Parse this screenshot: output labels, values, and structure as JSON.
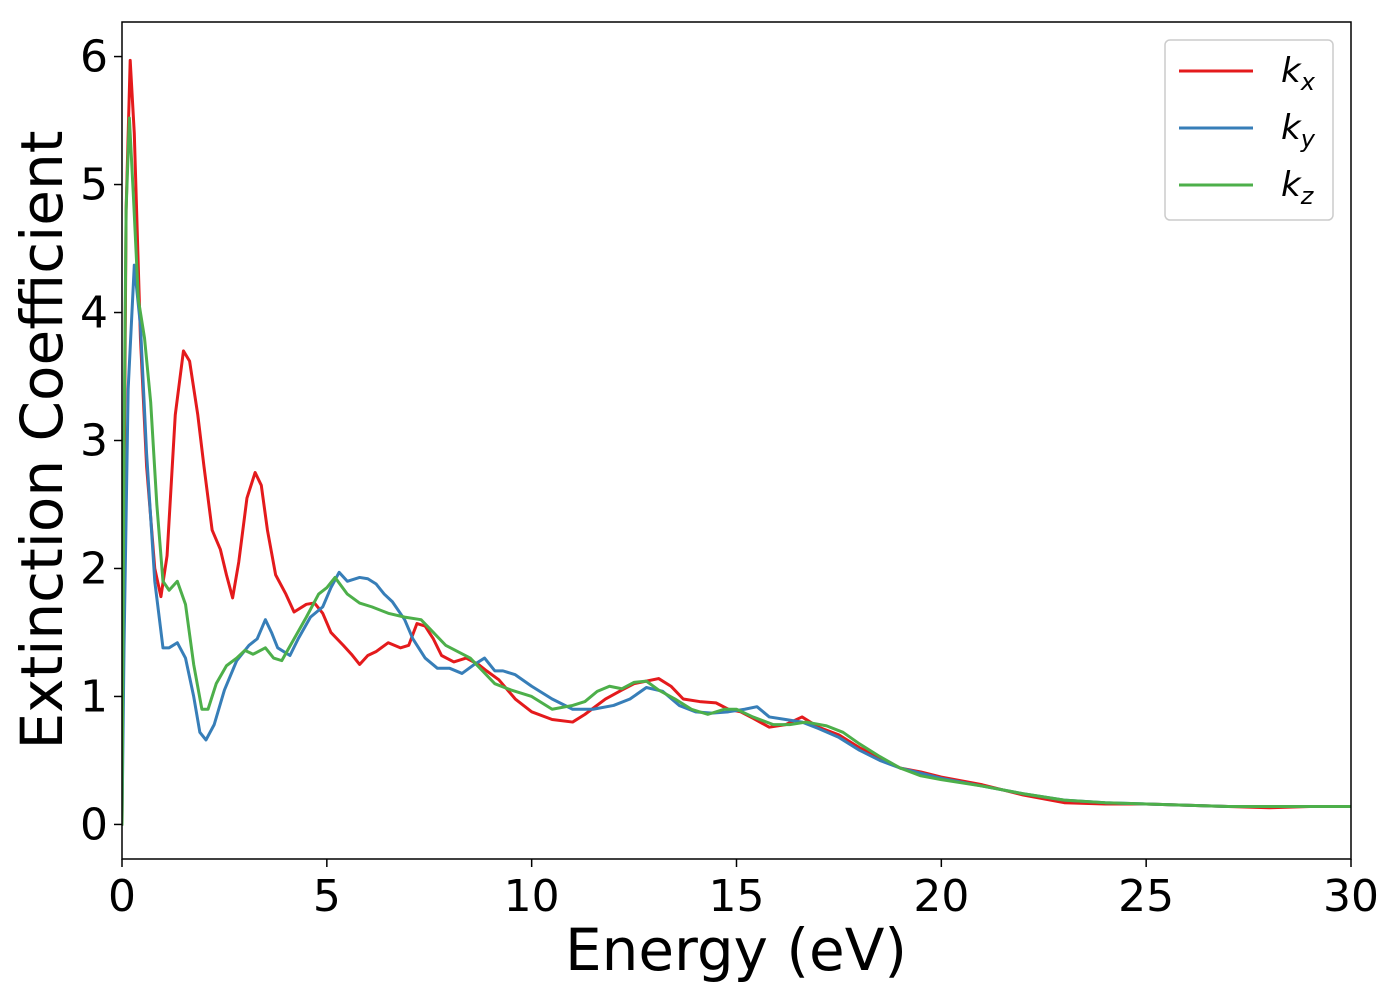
{
  "chart_data": {
    "type": "line",
    "xlabel": "Energy (eV)",
    "ylabel": "Extinction Coefficient",
    "xlim": [
      0,
      30
    ],
    "ylim": [
      -0.27,
      6.27
    ],
    "xticks": [
      0,
      5,
      10,
      15,
      20,
      25,
      30
    ],
    "yticks": [
      0,
      1,
      2,
      3,
      4,
      5,
      6
    ],
    "grid": false,
    "legend_position": "top-right",
    "series": [
      {
        "name": "k_x",
        "label_base": "k",
        "label_sub": "x",
        "color": "#e41a1c",
        "points": [
          [
            0,
            0
          ],
          [
            0.05,
            2.5
          ],
          [
            0.1,
            4.8
          ],
          [
            0.2,
            5.97
          ],
          [
            0.3,
            5.4
          ],
          [
            0.45,
            3.8
          ],
          [
            0.6,
            2.8
          ],
          [
            0.8,
            2.0
          ],
          [
            0.95,
            1.78
          ],
          [
            1.1,
            2.1
          ],
          [
            1.3,
            3.2
          ],
          [
            1.5,
            3.7
          ],
          [
            1.65,
            3.62
          ],
          [
            1.85,
            3.2
          ],
          [
            2.0,
            2.8
          ],
          [
            2.2,
            2.3
          ],
          [
            2.4,
            2.15
          ],
          [
            2.55,
            1.95
          ],
          [
            2.7,
            1.77
          ],
          [
            2.85,
            2.05
          ],
          [
            3.05,
            2.55
          ],
          [
            3.25,
            2.75
          ],
          [
            3.4,
            2.65
          ],
          [
            3.55,
            2.3
          ],
          [
            3.75,
            1.95
          ],
          [
            4.0,
            1.8
          ],
          [
            4.2,
            1.66
          ],
          [
            4.5,
            1.72
          ],
          [
            4.7,
            1.73
          ],
          [
            4.9,
            1.65
          ],
          [
            5.1,
            1.5
          ],
          [
            5.4,
            1.4
          ],
          [
            5.6,
            1.33
          ],
          [
            5.8,
            1.25
          ],
          [
            6.0,
            1.32
          ],
          [
            6.2,
            1.35
          ],
          [
            6.5,
            1.42
          ],
          [
            6.8,
            1.38
          ],
          [
            7.0,
            1.4
          ],
          [
            7.2,
            1.57
          ],
          [
            7.4,
            1.55
          ],
          [
            7.6,
            1.45
          ],
          [
            7.8,
            1.32
          ],
          [
            8.1,
            1.27
          ],
          [
            8.4,
            1.3
          ],
          [
            8.7,
            1.25
          ],
          [
            8.9,
            1.2
          ],
          [
            9.2,
            1.13
          ],
          [
            9.6,
            0.98
          ],
          [
            10.0,
            0.88
          ],
          [
            10.5,
            0.82
          ],
          [
            11.0,
            0.8
          ],
          [
            11.3,
            0.86
          ],
          [
            11.8,
            0.98
          ],
          [
            12.2,
            1.05
          ],
          [
            12.5,
            1.1
          ],
          [
            12.8,
            1.12
          ],
          [
            13.1,
            1.14
          ],
          [
            13.4,
            1.08
          ],
          [
            13.7,
            0.98
          ],
          [
            14.1,
            0.96
          ],
          [
            14.5,
            0.95
          ],
          [
            14.8,
            0.9
          ],
          [
            15.1,
            0.88
          ],
          [
            15.4,
            0.83
          ],
          [
            15.8,
            0.76
          ],
          [
            16.2,
            0.78
          ],
          [
            16.6,
            0.84
          ],
          [
            17.0,
            0.76
          ],
          [
            17.5,
            0.7
          ],
          [
            18.0,
            0.6
          ],
          [
            18.5,
            0.52
          ],
          [
            19.0,
            0.44
          ],
          [
            19.5,
            0.41
          ],
          [
            20.0,
            0.37
          ],
          [
            21.0,
            0.31
          ],
          [
            22.0,
            0.23
          ],
          [
            23.0,
            0.17
          ],
          [
            24.0,
            0.16
          ],
          [
            25.0,
            0.16
          ],
          [
            26.0,
            0.15
          ],
          [
            27.0,
            0.14
          ],
          [
            28.0,
            0.13
          ],
          [
            29.0,
            0.14
          ],
          [
            30.0,
            0.14
          ]
        ]
      },
      {
        "name": "k_y",
        "label_base": "k",
        "label_sub": "y",
        "color": "#377eb8",
        "points": [
          [
            0,
            0
          ],
          [
            0.05,
            1.4
          ],
          [
            0.15,
            3.4
          ],
          [
            0.3,
            4.37
          ],
          [
            0.45,
            3.9
          ],
          [
            0.6,
            2.9
          ],
          [
            0.8,
            1.9
          ],
          [
            1.0,
            1.38
          ],
          [
            1.15,
            1.38
          ],
          [
            1.35,
            1.42
          ],
          [
            1.55,
            1.3
          ],
          [
            1.75,
            1.0
          ],
          [
            1.9,
            0.72
          ],
          [
            2.05,
            0.66
          ],
          [
            2.25,
            0.78
          ],
          [
            2.5,
            1.05
          ],
          [
            2.8,
            1.28
          ],
          [
            3.1,
            1.4
          ],
          [
            3.3,
            1.45
          ],
          [
            3.5,
            1.6
          ],
          [
            3.65,
            1.5
          ],
          [
            3.8,
            1.38
          ],
          [
            4.1,
            1.32
          ],
          [
            4.3,
            1.45
          ],
          [
            4.6,
            1.62
          ],
          [
            4.9,
            1.7
          ],
          [
            5.1,
            1.85
          ],
          [
            5.3,
            1.97
          ],
          [
            5.5,
            1.9
          ],
          [
            5.8,
            1.93
          ],
          [
            6.0,
            1.92
          ],
          [
            6.2,
            1.88
          ],
          [
            6.4,
            1.8
          ],
          [
            6.6,
            1.74
          ],
          [
            6.9,
            1.6
          ],
          [
            7.1,
            1.45
          ],
          [
            7.4,
            1.3
          ],
          [
            7.7,
            1.22
          ],
          [
            8.0,
            1.22
          ],
          [
            8.3,
            1.18
          ],
          [
            8.6,
            1.25
          ],
          [
            8.85,
            1.3
          ],
          [
            9.1,
            1.2
          ],
          [
            9.3,
            1.2
          ],
          [
            9.6,
            1.17
          ],
          [
            10.0,
            1.08
          ],
          [
            10.5,
            0.98
          ],
          [
            11.0,
            0.9
          ],
          [
            11.5,
            0.9
          ],
          [
            12.0,
            0.93
          ],
          [
            12.4,
            0.98
          ],
          [
            12.8,
            1.07
          ],
          [
            13.2,
            1.04
          ],
          [
            13.6,
            0.93
          ],
          [
            14.0,
            0.88
          ],
          [
            14.4,
            0.87
          ],
          [
            14.8,
            0.88
          ],
          [
            15.2,
            0.9
          ],
          [
            15.5,
            0.92
          ],
          [
            15.8,
            0.84
          ],
          [
            16.2,
            0.82
          ],
          [
            16.6,
            0.8
          ],
          [
            17.0,
            0.75
          ],
          [
            17.5,
            0.68
          ],
          [
            18.0,
            0.58
          ],
          [
            18.5,
            0.5
          ],
          [
            19.0,
            0.44
          ],
          [
            20.0,
            0.36
          ],
          [
            21.0,
            0.3
          ],
          [
            22.0,
            0.24
          ],
          [
            23.0,
            0.19
          ],
          [
            24.0,
            0.17
          ],
          [
            25.0,
            0.16
          ],
          [
            26.0,
            0.15
          ],
          [
            27.0,
            0.14
          ],
          [
            28.0,
            0.14
          ],
          [
            29.0,
            0.14
          ],
          [
            30.0,
            0.14
          ]
        ]
      },
      {
        "name": "k_z",
        "label_base": "k",
        "label_sub": "z",
        "color": "#4daf4a",
        "points": [
          [
            0,
            0
          ],
          [
            0.05,
            3.0
          ],
          [
            0.1,
            4.8
          ],
          [
            0.18,
            5.52
          ],
          [
            0.28,
            4.9
          ],
          [
            0.4,
            4.1
          ],
          [
            0.55,
            3.8
          ],
          [
            0.7,
            3.3
          ],
          [
            0.85,
            2.5
          ],
          [
            1.0,
            1.9
          ],
          [
            1.15,
            1.83
          ],
          [
            1.35,
            1.9
          ],
          [
            1.55,
            1.72
          ],
          [
            1.75,
            1.25
          ],
          [
            1.95,
            0.9
          ],
          [
            2.1,
            0.9
          ],
          [
            2.3,
            1.1
          ],
          [
            2.55,
            1.24
          ],
          [
            2.8,
            1.3
          ],
          [
            3.0,
            1.36
          ],
          [
            3.2,
            1.33
          ],
          [
            3.5,
            1.38
          ],
          [
            3.7,
            1.3
          ],
          [
            3.9,
            1.28
          ],
          [
            4.2,
            1.45
          ],
          [
            4.5,
            1.62
          ],
          [
            4.8,
            1.8
          ],
          [
            5.0,
            1.85
          ],
          [
            5.2,
            1.93
          ],
          [
            5.5,
            1.8
          ],
          [
            5.8,
            1.73
          ],
          [
            6.1,
            1.7
          ],
          [
            6.5,
            1.65
          ],
          [
            6.9,
            1.62
          ],
          [
            7.3,
            1.6
          ],
          [
            7.6,
            1.5
          ],
          [
            7.9,
            1.4
          ],
          [
            8.2,
            1.35
          ],
          [
            8.5,
            1.3
          ],
          [
            8.8,
            1.2
          ],
          [
            9.1,
            1.1
          ],
          [
            9.5,
            1.05
          ],
          [
            10.0,
            1.0
          ],
          [
            10.5,
            0.9
          ],
          [
            11.0,
            0.93
          ],
          [
            11.3,
            0.96
          ],
          [
            11.6,
            1.04
          ],
          [
            11.9,
            1.08
          ],
          [
            12.2,
            1.06
          ],
          [
            12.5,
            1.11
          ],
          [
            12.8,
            1.12
          ],
          [
            13.1,
            1.05
          ],
          [
            13.5,
            0.98
          ],
          [
            13.9,
            0.9
          ],
          [
            14.3,
            0.86
          ],
          [
            14.7,
            0.9
          ],
          [
            15.0,
            0.9
          ],
          [
            15.4,
            0.84
          ],
          [
            15.9,
            0.78
          ],
          [
            16.3,
            0.78
          ],
          [
            16.7,
            0.8
          ],
          [
            17.2,
            0.77
          ],
          [
            17.6,
            0.72
          ],
          [
            18.0,
            0.63
          ],
          [
            18.5,
            0.53
          ],
          [
            19.0,
            0.44
          ],
          [
            19.5,
            0.38
          ],
          [
            20.0,
            0.35
          ],
          [
            21.0,
            0.3
          ],
          [
            22.0,
            0.24
          ],
          [
            23.0,
            0.19
          ],
          [
            24.0,
            0.17
          ],
          [
            25.0,
            0.16
          ],
          [
            26.0,
            0.15
          ],
          [
            27.0,
            0.14
          ],
          [
            28.0,
            0.14
          ],
          [
            29.0,
            0.14
          ],
          [
            30.0,
            0.14
          ]
        ]
      }
    ]
  }
}
